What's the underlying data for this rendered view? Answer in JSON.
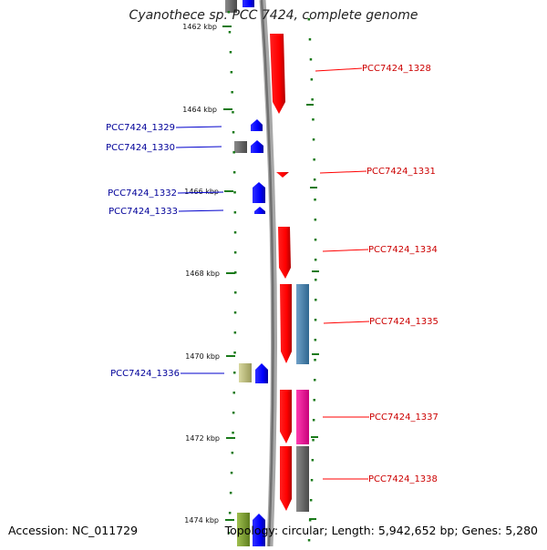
{
  "title": "Cyanothece sp. PCC 7424, complete genome",
  "footer": {
    "accession": "Accession: NC_011729",
    "summary": "Topology: circular; Length: 5,942,652 bp; Genes: 5,280"
  },
  "colors": {
    "forward": "#ff0000",
    "reverse": "#0000ff",
    "forward_label": "#cc0000",
    "reverse_label": "#000099",
    "tick": "#1a7a1a",
    "backbone": "#808080"
  },
  "ruler": {
    "unit": "kbp",
    "ticks": [
      {
        "kbp": 1462,
        "label": "1462 kbp"
      },
      {
        "kbp": 1464,
        "label": "1464 kbp"
      },
      {
        "kbp": 1466,
        "label": "1466 kbp"
      },
      {
        "kbp": 1468,
        "label": "1468 kbp"
      },
      {
        "kbp": 1470,
        "label": "1470 kbp"
      },
      {
        "kbp": 1472,
        "label": "1472 kbp"
      },
      {
        "kbp": 1474,
        "label": "1474 kbp"
      }
    ]
  },
  "genes_forward": [
    {
      "label": "PCC7424_1328"
    },
    {
      "label": "PCC7424_1331"
    },
    {
      "label": "PCC7424_1334"
    },
    {
      "label": "PCC7424_1335"
    },
    {
      "label": "PCC7424_1337"
    },
    {
      "label": "PCC7424_1338"
    }
  ],
  "genes_reverse": [
    {
      "label": "PCC7424_1329"
    },
    {
      "label": "PCC7424_1330"
    },
    {
      "label": "PCC7424_1332"
    },
    {
      "label": "PCC7424_1333"
    },
    {
      "label": "PCC7424_1336"
    }
  ]
}
